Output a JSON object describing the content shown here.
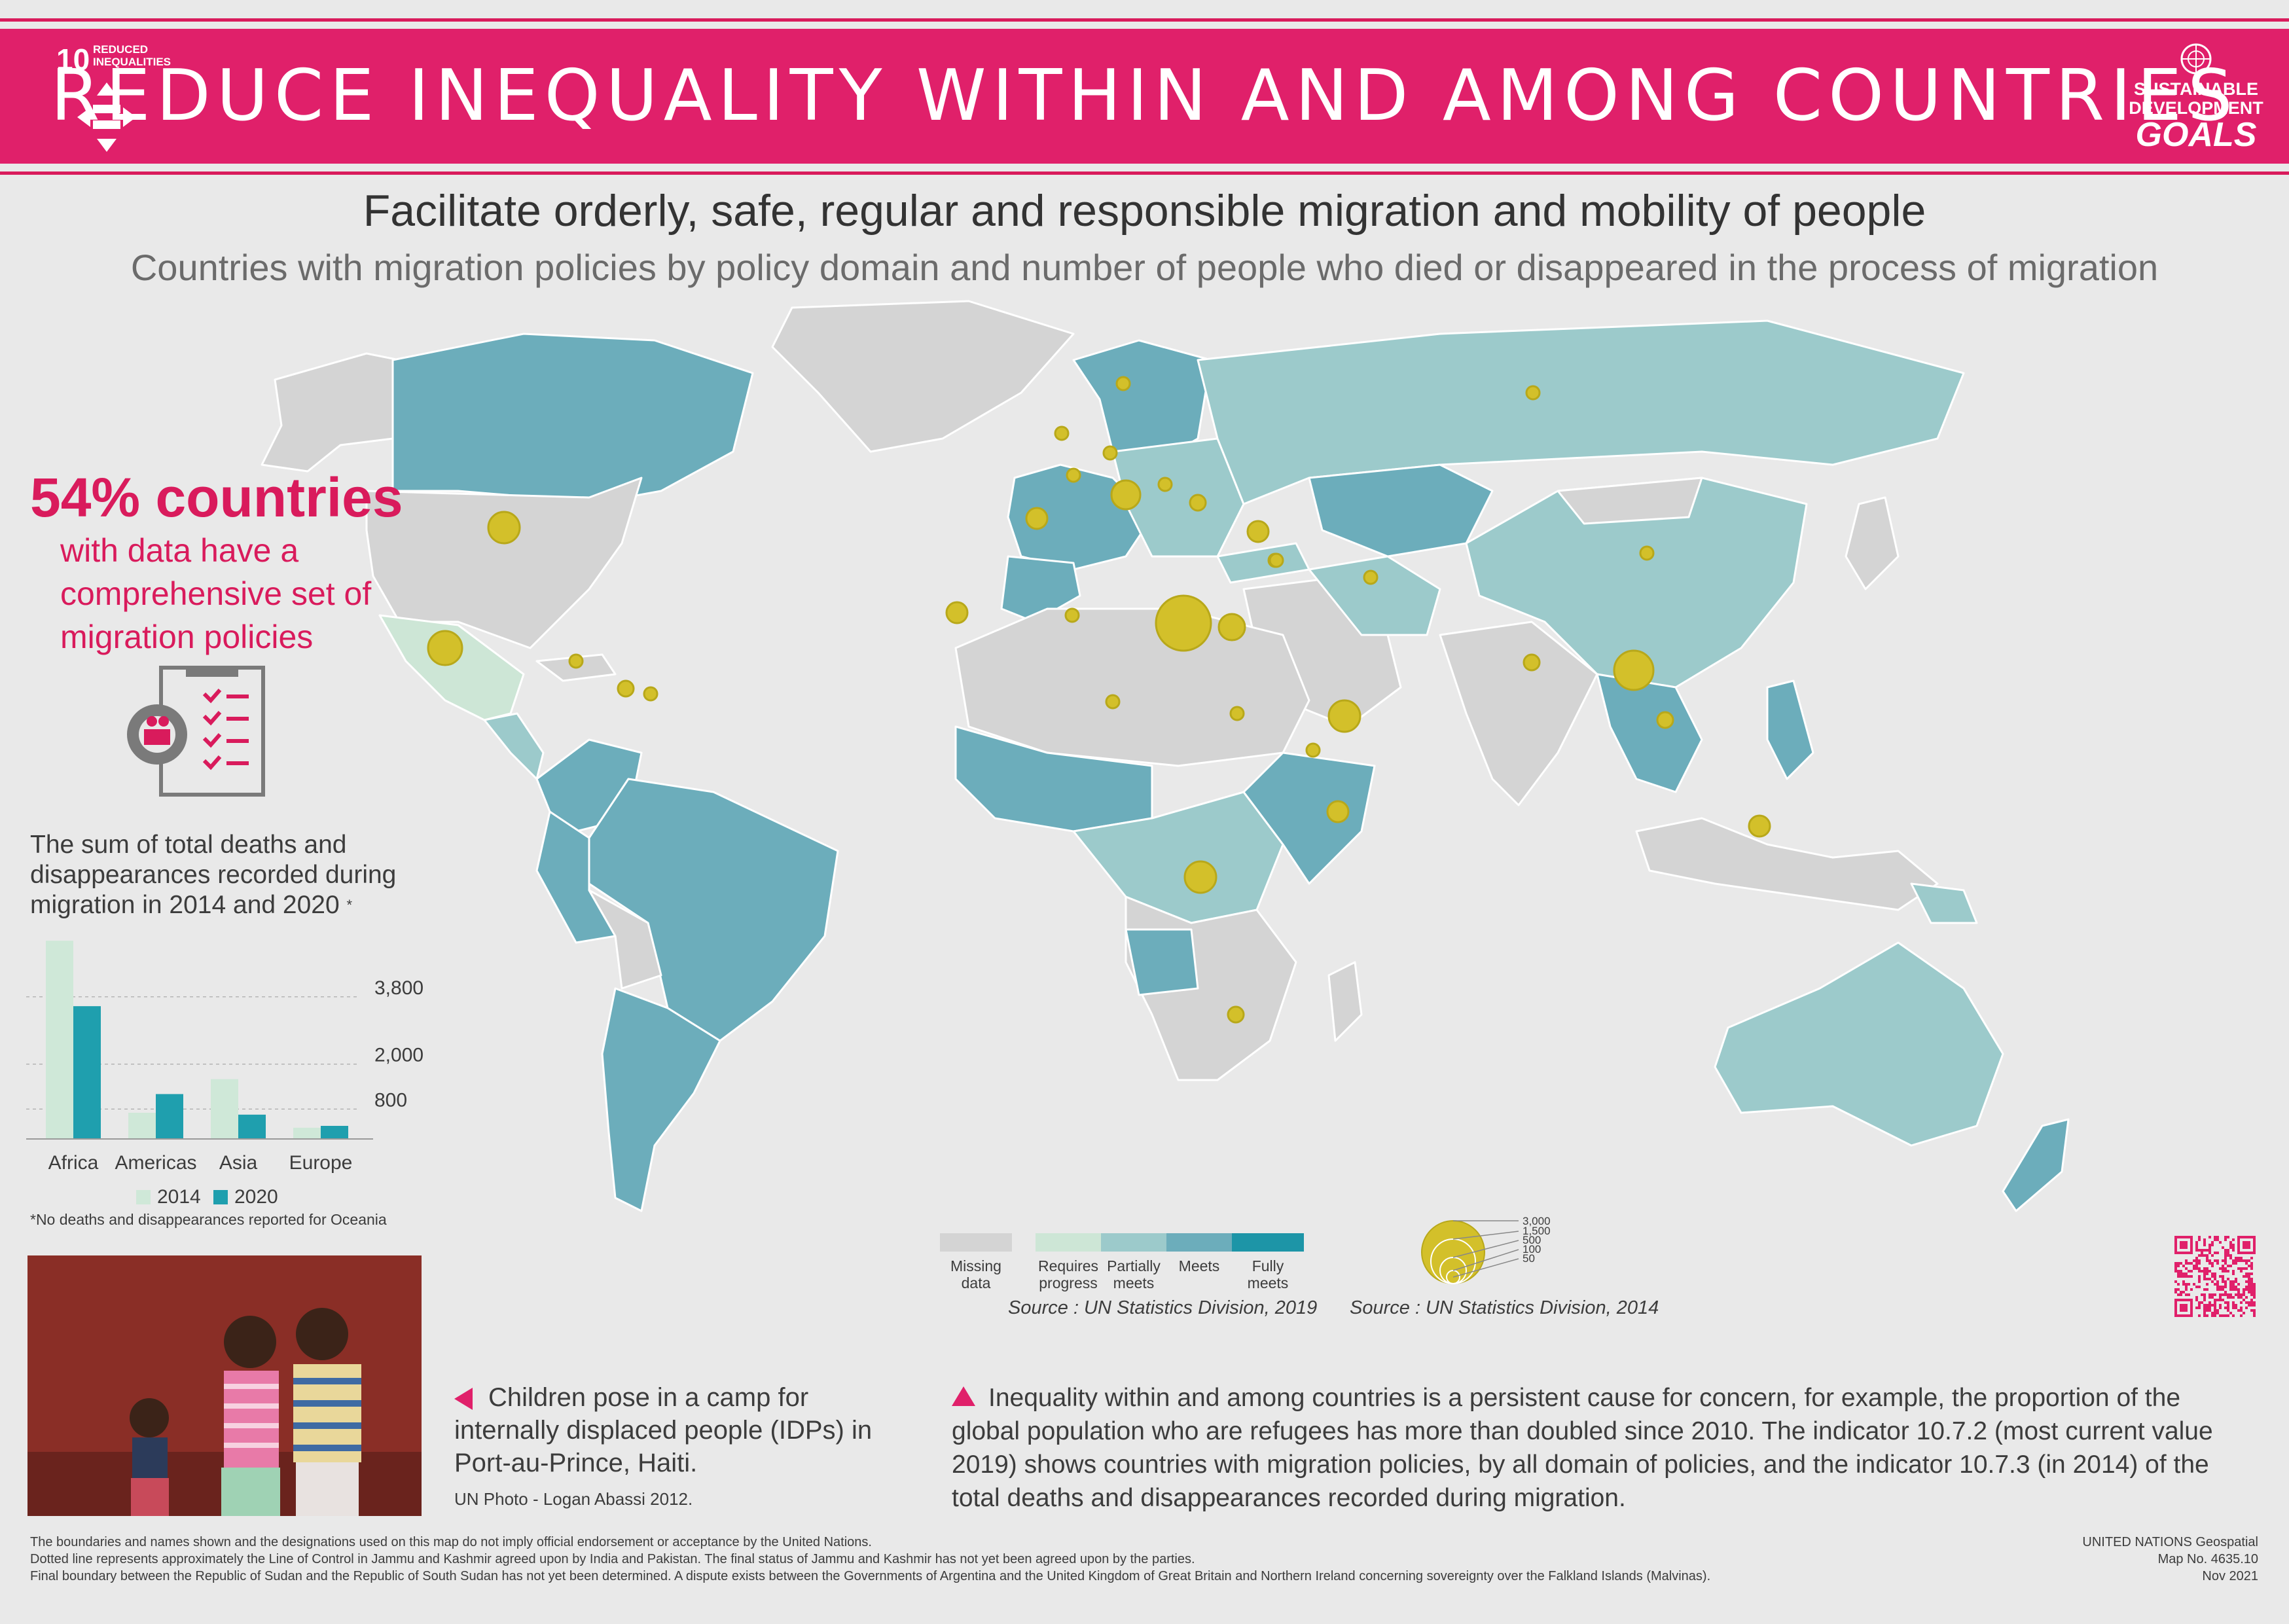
{
  "header": {
    "goal_number": "10",
    "goal_name_line1": "REDUCED",
    "goal_name_line2": "INEQUALITIES",
    "title": "REDUCE INEQUALITY WITHIN AND AMONG COUNTRIES",
    "logo_line1": "SUSTAINABLE",
    "logo_line2": "DEVELOPMENT",
    "logo_line3": "GOALS"
  },
  "headline": "Facilitate orderly, safe, regular and responsible migration and mobility of people",
  "subheadline": "Countries with migration policies by policy domain and number of people who died or disappeared in the process of migration",
  "stat": {
    "big": "54% countries",
    "text": "with data have a comprehensive set of migration policies"
  },
  "chart_data": {
    "type": "bar",
    "title": "The sum of total deaths and disappearances recorded during migration in 2014 and 2020",
    "title_mark": "*",
    "categories": [
      "Africa",
      "Americas",
      "Asia",
      "Europe"
    ],
    "series": [
      {
        "name": "2014",
        "color": "#cfe8d8",
        "values": [
          5300,
          700,
          1600,
          300
        ]
      },
      {
        "name": "2020",
        "color": "#1f9fae",
        "values": [
          3550,
          1200,
          650,
          350
        ]
      }
    ],
    "ylim": [
      0,
      5600
    ],
    "yticks": [
      800,
      2000,
      3800
    ],
    "ytick_labels": [
      "800",
      "2,000",
      "3,800"
    ],
    "note": "*No deaths and disappearances reported for Oceania"
  },
  "photo": {
    "caption": "Children pose in a camp for internally displaced people (IDPs) in Port-au-Prince, Haiti.",
    "credit": "UN Photo - Logan Abassi 2012."
  },
  "body_text": "Inequality within and among countries is a persistent cause for concern, for example, the proportion of the global population who are refugees has more than doubled since 2010. The indicator 10.7.2 (most current value 2019) shows countries with migration policies, by all domain of policies, and the indicator 10.7.3 (in 2014) of the total deaths and disappearances recorded during migration.",
  "legend_policy": {
    "items": [
      {
        "label1": "Missing",
        "label2": "data",
        "color": "#d4d4d4"
      },
      {
        "label1": "Requires",
        "label2": "progress",
        "color": "#cde6d6"
      },
      {
        "label1": "Partially",
        "label2": "meets",
        "color": "#9ccacb"
      },
      {
        "label1": "Meets",
        "label2": "",
        "color": "#6cadbb"
      },
      {
        "label1": "Fully",
        "label2": "meets",
        "color": "#1d95a7"
      }
    ],
    "source": "Source : UN Statistics Division, 2019"
  },
  "legend_deaths": {
    "labels": [
      "3,000",
      "1,500",
      "500",
      "100",
      "50"
    ],
    "source": "Source : UN Statistics Division, 2014",
    "bubble_color": "#d3c02a"
  },
  "disclaimer": [
    "The boundaries and names shown and the designations used on this map do not imply official endorsement or acceptance by the United Nations.",
    "Dotted line represents approximately the Line of Control in Jammu and Kashmir agreed upon by India and Pakistan. The final status of Jammu and Kashmir has not yet been agreed upon by the parties.",
    "Final boundary between the Republic of Sudan and the Republic of South Sudan has not yet been determined. A dispute exists between the Governments of Argentina and the United Kingdom of Great Britain and Northern Ireland concerning sovereignty over the Falkland Islands (Malvinas)."
  ],
  "map_info": [
    "UNITED NATIONS Geospatial",
    "Map No. 4635.10",
    "Nov 2021"
  ],
  "colors": {
    "accent": "#e0206a",
    "bubble": "#d3c02a"
  }
}
